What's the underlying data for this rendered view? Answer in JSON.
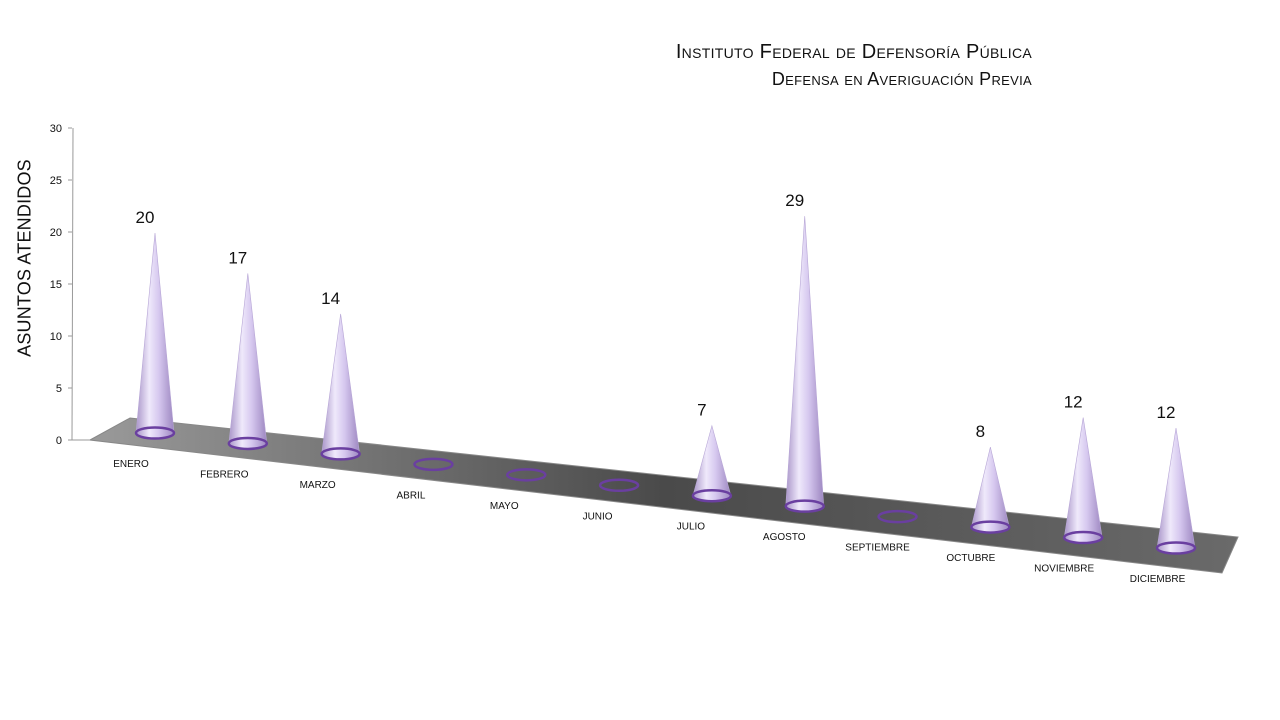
{
  "chart_data": {
    "type": "bar",
    "title": "Instituto Federal de Defensoría Pública",
    "subtitle": "Defensa en Averiguación Previa",
    "xlabel": "",
    "ylabel": "ASUNTOS ATENDIDOS",
    "ylim": [
      0,
      30
    ],
    "yticks": [
      "0",
      "5",
      "10",
      "15",
      "20",
      "25",
      "30"
    ],
    "categories": [
      "ENERO",
      "FEBRERO",
      "MARZO",
      "ABRIL",
      "MAYO",
      "JUNIO",
      "JULIO",
      "AGOSTO",
      "SEPTIEMBRE",
      "OCTUBRE",
      "NOVIEMBRE",
      "DICIEMBRE"
    ],
    "values": [
      20,
      17,
      14,
      0,
      0,
      0,
      7,
      29,
      0,
      8,
      12,
      12
    ],
    "data_labels": [
      "20",
      "17",
      "14",
      "",
      "",
      "",
      "7",
      "29",
      "",
      "8",
      "12",
      "12"
    ],
    "bar_shape": "cone",
    "bar_color": "#d9cdf0",
    "base_ring_color": "#6a3fa0",
    "floor_color": "#5a5a5a",
    "legend": "none",
    "grid": false
  }
}
